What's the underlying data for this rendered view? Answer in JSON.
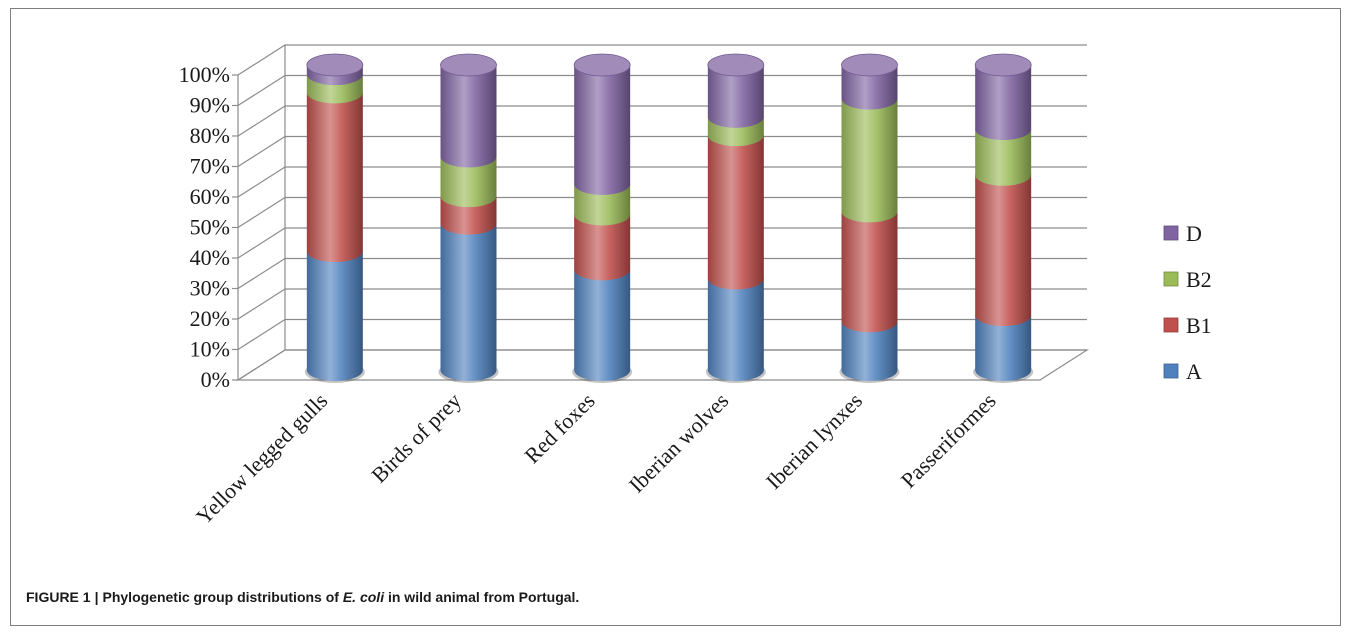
{
  "chart_data": {
    "type": "bar",
    "stacked": "percent",
    "style": "3d-cylinder",
    "categories": [
      "Yellow legged gulls",
      "Birds of prey",
      "Red foxes",
      "Iberian wolves",
      "Iberian lynxes",
      "Passeriformes"
    ],
    "series": [
      {
        "name": "A",
        "color": "#4f81bd",
        "values": [
          39,
          48,
          33,
          30,
          16,
          18
        ]
      },
      {
        "name": "B1",
        "color": "#c0504d",
        "values": [
          52,
          9,
          18,
          47,
          36,
          46
        ]
      },
      {
        "name": "B2",
        "color": "#9bbb59",
        "values": [
          6,
          13,
          10,
          6,
          37,
          15
        ]
      },
      {
        "name": "D",
        "color": "#8064a2",
        "values": [
          3,
          30,
          39,
          17,
          11,
          21
        ]
      }
    ],
    "ylim": [
      0,
      100
    ],
    "yticks": [
      "0%",
      "10%",
      "20%",
      "30%",
      "40%",
      "50%",
      "60%",
      "70%",
      "80%",
      "90%",
      "100%"
    ],
    "grid": true,
    "legend_position": "right",
    "legend_order": [
      "D",
      "B2",
      "B1",
      "A"
    ]
  },
  "caption": {
    "label": "FIGURE 1",
    "separator": "|",
    "text_before": "Phylogenetic group distributions of",
    "italic": "E. coli",
    "text_after": "in wild animal from Portugal."
  }
}
